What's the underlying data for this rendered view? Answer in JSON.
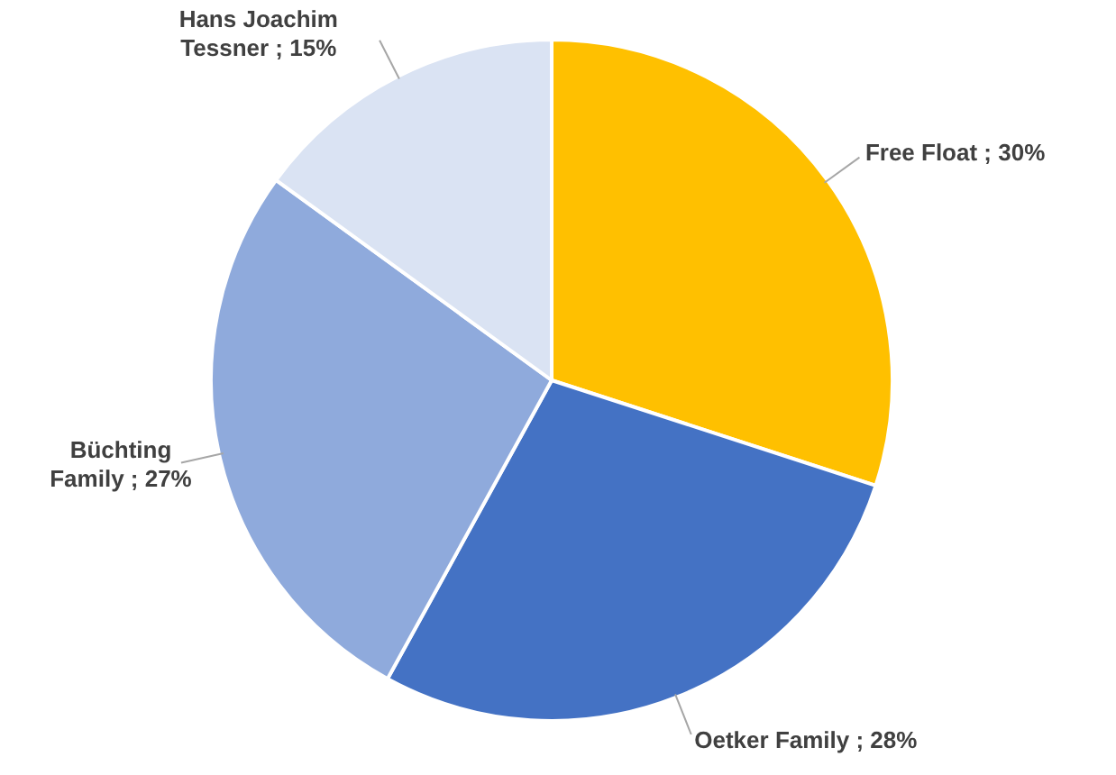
{
  "chart_data": {
    "type": "pie",
    "categories": [
      "Free Float",
      "Oetker Family",
      "Büchting Family",
      "Hans Joachim Tessner"
    ],
    "values": [
      30,
      28,
      27,
      15
    ],
    "colors": [
      "#ffc000",
      "#4472c4",
      "#8faadc",
      "#dae3f3"
    ],
    "value_labels": [
      "30%",
      "28%",
      "27%",
      "15%"
    ],
    "legend": false
  }
}
